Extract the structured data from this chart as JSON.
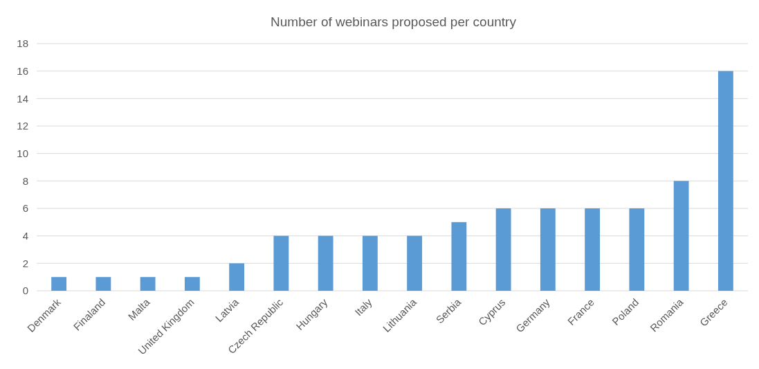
{
  "chart_data": {
    "type": "bar",
    "title": "Number of webinars proposed per country",
    "categories": [
      "Denmark",
      "Finaland",
      "Malta",
      "United Kingdom",
      "Latvia",
      "Czech Republic",
      "Hungary",
      "Italy",
      "Lithuania",
      "Serbia",
      "Cyprus",
      "Germany",
      "France",
      "Poland",
      "Romania",
      "Greece"
    ],
    "values": [
      1,
      1,
      1,
      1,
      2,
      4,
      4,
      4,
      4,
      5,
      6,
      6,
      6,
      6,
      8,
      16
    ],
    "color": "#5b9bd5",
    "ylim": [
      0,
      18
    ],
    "yticks": [
      0,
      2,
      4,
      6,
      8,
      10,
      12,
      14,
      16,
      18
    ],
    "grid": "y"
  }
}
